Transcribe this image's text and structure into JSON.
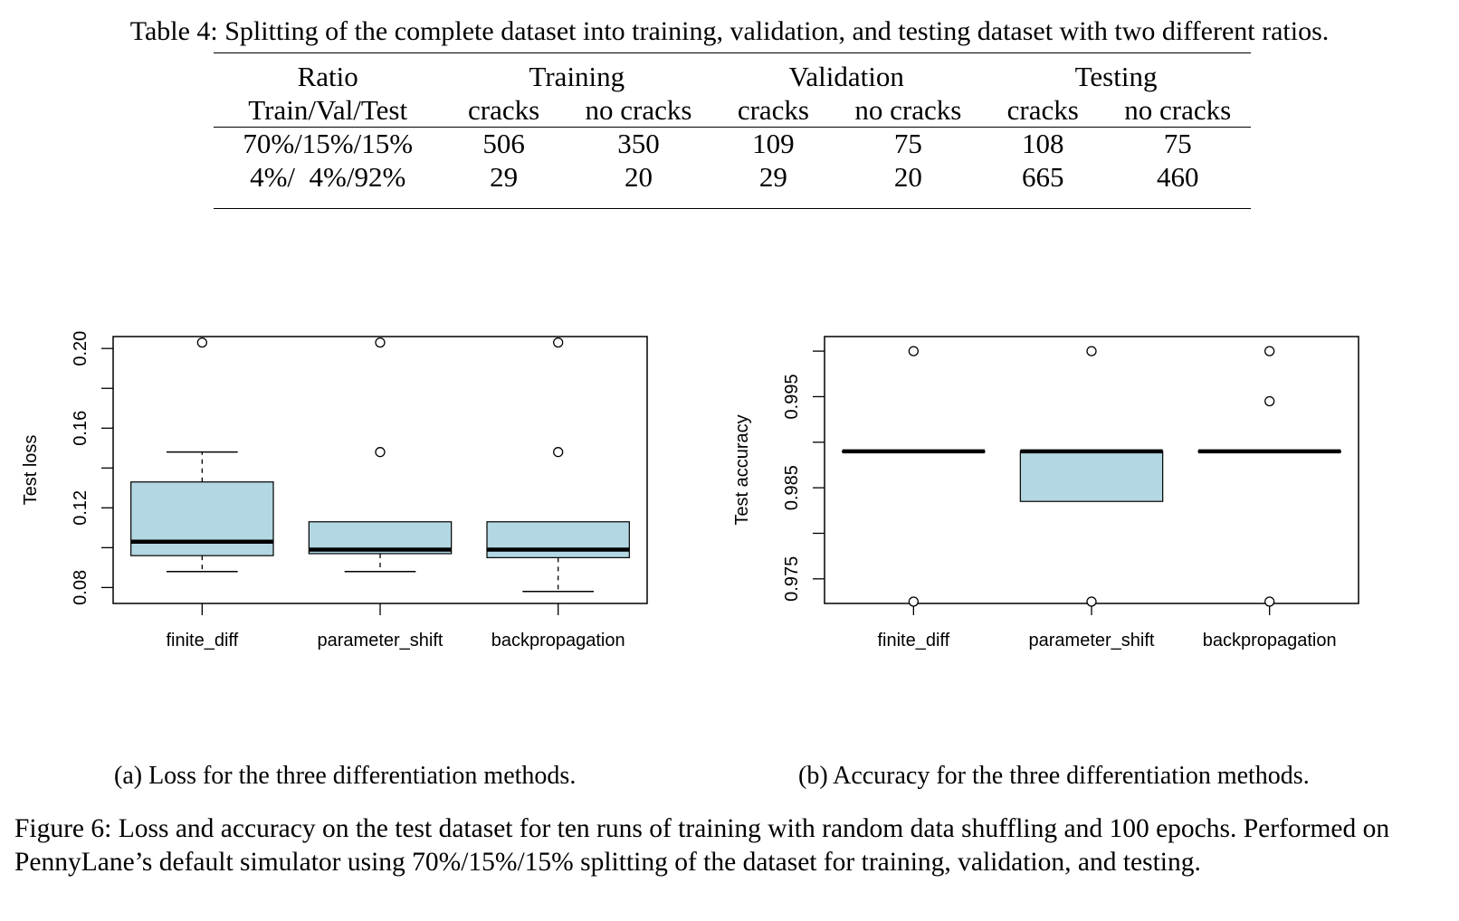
{
  "table": {
    "caption": "Table 4: Splitting of the complete dataset into training, validation, and testing dataset with two different ratios.",
    "header_row1": [
      "Ratio",
      "Training",
      "Validation",
      "Testing"
    ],
    "header_row2": [
      "Train/Val/Test",
      "cracks",
      "no cracks",
      "cracks",
      "no cracks",
      "cracks",
      "no cracks"
    ],
    "rows": [
      [
        "70%/15%/15%",
        "506",
        "350",
        "109",
        "75",
        "108",
        "75"
      ],
      [
        "4%/  4%/92%",
        "29",
        "20",
        "29",
        "20",
        "665",
        "460"
      ]
    ]
  },
  "chart_data": [
    {
      "type": "boxplot",
      "ylabel": "Test loss",
      "categories": [
        "finite_diff",
        "parameter_shift",
        "backpropagation"
      ],
      "ylim": [
        0.072,
        0.206
      ],
      "yticks": [
        "0.08",
        "0.12",
        "0.16",
        "0.20"
      ],
      "ytick_values": [
        0.08,
        0.1,
        0.12,
        0.14,
        0.16,
        0.18,
        0.2
      ],
      "box_color": "#b3d7e3",
      "boxes": [
        {
          "min": 0.088,
          "q1": 0.096,
          "median": 0.103,
          "q3": 0.133,
          "max": 0.148,
          "outliers": [
            0.203
          ]
        },
        {
          "min": 0.088,
          "q1": 0.097,
          "median": 0.099,
          "q3": 0.113,
          "max": 0.113,
          "outliers": [
            0.148,
            0.203
          ]
        },
        {
          "min": 0.078,
          "q1": 0.095,
          "median": 0.099,
          "q3": 0.113,
          "max": 0.113,
          "outliers": [
            0.148,
            0.203
          ]
        }
      ]
    },
    {
      "type": "boxplot",
      "ylabel": "Test accuracy",
      "categories": [
        "finite_diff",
        "parameter_shift",
        "backpropagation"
      ],
      "ylim": [
        0.9723,
        1.0016
      ],
      "yticks": [
        "0.975",
        "0.985",
        "0.995"
      ],
      "ytick_values": [
        0.975,
        0.98,
        0.985,
        0.99,
        0.995,
        1.0
      ],
      "box_color": "#b3d7e3",
      "boxes": [
        {
          "min": 0.989,
          "q1": 0.989,
          "median": 0.989,
          "q3": 0.989,
          "max": 0.989,
          "outliers": [
            1.0,
            0.9725
          ]
        },
        {
          "min": 0.9835,
          "q1": 0.9835,
          "median": 0.989,
          "q3": 0.989,
          "max": 0.989,
          "outliers": [
            1.0,
            0.9725
          ]
        },
        {
          "min": 0.989,
          "q1": 0.989,
          "median": 0.989,
          "q3": 0.989,
          "max": 0.989,
          "outliers": [
            1.0,
            0.9945,
            0.9725
          ]
        }
      ]
    }
  ],
  "subcaptions": {
    "a": "(a) Loss for the three differentiation methods.",
    "b": "(b) Accuracy for the three differentiation methods."
  },
  "figure_caption": "Figure 6: Loss and accuracy on the test dataset for ten runs of training with random data shuffling and 100 epochs. Performed on PennyLane’s default simulator using 70%/15%/15% splitting of the dataset for training, validation, and testing."
}
